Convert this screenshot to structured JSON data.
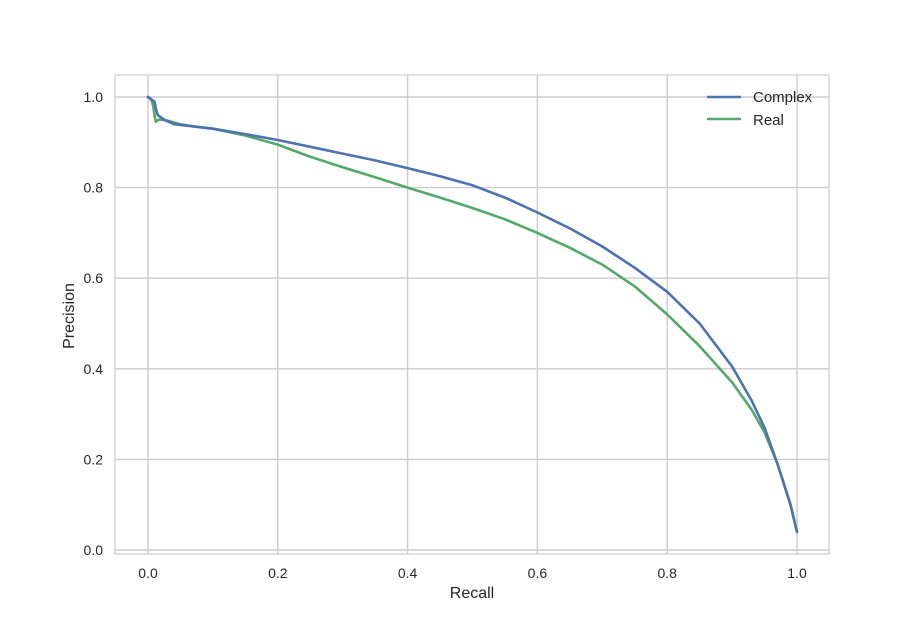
{
  "chart_data": {
    "type": "line",
    "title": "",
    "xlabel": "Recall",
    "ylabel": "Precision",
    "xlim": [
      -0.05,
      1.05
    ],
    "ylim": [
      -0.01,
      1.05
    ],
    "xticks": [
      0.0,
      0.2,
      0.4,
      0.6,
      0.8,
      1.0
    ],
    "xtick_labels": [
      "0.0",
      "0.2",
      "0.4",
      "0.6",
      "0.8",
      "1.0"
    ],
    "yticks": [
      0.0,
      0.2,
      0.4,
      0.6,
      0.8,
      1.0
    ],
    "ytick_labels": [
      "0.0",
      "0.2",
      "0.4",
      "0.6",
      "0.8",
      "1.0"
    ],
    "grid": true,
    "legend_position": "upper right",
    "series": [
      {
        "name": "Complex",
        "color": "#4c72b0",
        "x": [
          0.0,
          0.005,
          0.01,
          0.012,
          0.015,
          0.025,
          0.04,
          0.07,
          0.1,
          0.15,
          0.2,
          0.25,
          0.3,
          0.35,
          0.4,
          0.45,
          0.5,
          0.55,
          0.6,
          0.65,
          0.7,
          0.75,
          0.8,
          0.85,
          0.9,
          0.93,
          0.95,
          0.97,
          0.99,
          1.0
        ],
        "y": [
          1.0,
          0.995,
          0.99,
          0.975,
          0.96,
          0.95,
          0.94,
          0.935,
          0.93,
          0.918,
          0.905,
          0.89,
          0.875,
          0.86,
          0.843,
          0.825,
          0.805,
          0.778,
          0.745,
          0.71,
          0.67,
          0.623,
          0.57,
          0.5,
          0.405,
          0.33,
          0.27,
          0.19,
          0.1,
          0.04
        ]
      },
      {
        "name": "Real",
        "color": "#55a868",
        "x": [
          0.0,
          0.005,
          0.008,
          0.01,
          0.012,
          0.016,
          0.02,
          0.03,
          0.05,
          0.07,
          0.1,
          0.15,
          0.2,
          0.25,
          0.3,
          0.35,
          0.4,
          0.45,
          0.5,
          0.55,
          0.6,
          0.65,
          0.7,
          0.75,
          0.8,
          0.85,
          0.9,
          0.93,
          0.95,
          0.97,
          0.99,
          1.0
        ],
        "y": [
          1.0,
          0.995,
          0.98,
          0.96,
          0.945,
          0.95,
          0.95,
          0.948,
          0.94,
          0.935,
          0.93,
          0.915,
          0.895,
          0.868,
          0.845,
          0.823,
          0.8,
          0.778,
          0.755,
          0.73,
          0.7,
          0.667,
          0.63,
          0.582,
          0.52,
          0.45,
          0.37,
          0.31,
          0.26,
          0.19,
          0.1,
          0.04
        ]
      }
    ]
  },
  "legend": {
    "items": [
      {
        "label": "Complex",
        "color": "#4c72b0"
      },
      {
        "label": "Real",
        "color": "#55a868"
      }
    ]
  },
  "style": {
    "grid_color": "#cccccc",
    "frame_color": "#cccccc",
    "background": "#ffffff"
  }
}
